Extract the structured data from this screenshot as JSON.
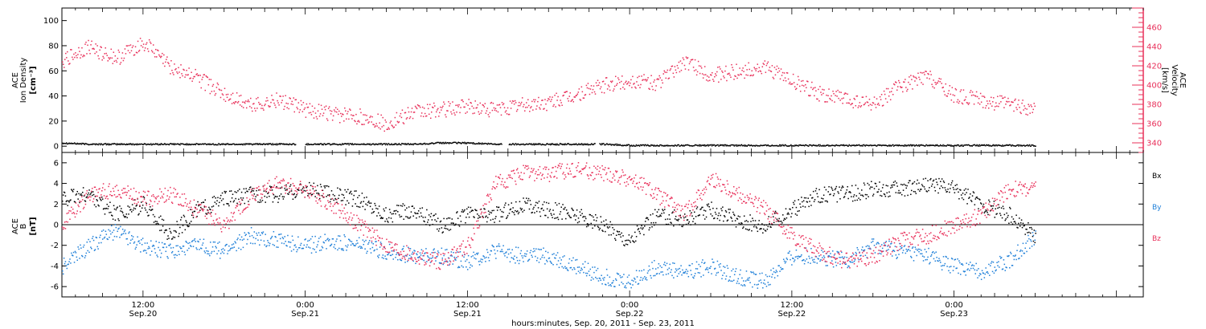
{
  "chart_data": [
    {
      "type": "scatter",
      "panel": "top",
      "ylabel_left": [
        "ACE",
        "Ion Density",
        "[cm⁻³]"
      ],
      "ylabel_right": [
        "ACE",
        "Velocity",
        "[km/s]"
      ],
      "ylim_left": [
        -5,
        110
      ],
      "yticks_left": [
        "0",
        "20",
        "40",
        "60",
        "80",
        "100"
      ],
      "ylim_right": [
        330,
        480
      ],
      "yticks_right": [
        "340",
        "360",
        "380",
        "400",
        "420",
        "440",
        "460"
      ],
      "colors": {
        "density": "#000000",
        "velocity": "#e8305a"
      },
      "x_hours_since_sep20_0000": [
        6,
        8,
        10,
        12,
        14,
        16,
        18,
        20,
        22,
        24,
        26,
        28,
        30,
        32,
        34,
        36,
        38,
        40,
        42,
        44,
        46,
        48,
        50,
        52,
        54,
        56,
        58,
        60,
        62,
        64,
        66,
        68,
        70,
        72,
        74,
        76,
        78
      ],
      "series": [
        {
          "name": "Ion Density",
          "axis": "left",
          "values": [
            3,
            2,
            2,
            2,
            2,
            2,
            2,
            2,
            2,
            2,
            2,
            2,
            2,
            2,
            3,
            3,
            2,
            2,
            2,
            2,
            2,
            1,
            1,
            1,
            1,
            1,
            1,
            1,
            1,
            1,
            1,
            1,
            1,
            1,
            1,
            1,
            1
          ],
          "gaps_hours": [
            [
              23.3,
              24.0
            ],
            [
              38.5,
              39.0
            ],
            [
              45.4,
              45.7
            ]
          ]
        },
        {
          "name": "Velocity",
          "axis": "right",
          "values": [
            425,
            440,
            428,
            445,
            420,
            408,
            390,
            380,
            385,
            375,
            370,
            368,
            360,
            372,
            375,
            378,
            375,
            380,
            382,
            390,
            400,
            405,
            402,
            425,
            410,
            415,
            418,
            405,
            392,
            385,
            380,
            400,
            410,
            390,
            385,
            380,
            375
          ]
        }
      ]
    },
    {
      "type": "scatter",
      "panel": "bottom",
      "ylabel_left": [
        "ACE",
        "B",
        "[nT]"
      ],
      "ylim": [
        -7,
        7
      ],
      "yticks": [
        "-6",
        "-4",
        "-2",
        "0",
        "2",
        "4",
        "6"
      ],
      "legend": [
        "Bx",
        "By",
        "Bz"
      ],
      "legend_position": "right",
      "colors": {
        "Bx": "#000000",
        "By": "#1e7fd8",
        "Bz": "#e8305a"
      },
      "x_hours_since_sep20_0000": [
        6,
        8,
        10,
        12,
        14,
        16,
        18,
        20,
        22,
        24,
        26,
        28,
        30,
        32,
        34,
        36,
        38,
        40,
        42,
        44,
        46,
        48,
        50,
        52,
        54,
        56,
        58,
        60,
        62,
        64,
        66,
        68,
        70,
        72,
        74,
        76,
        78
      ],
      "series": [
        {
          "name": "Bx",
          "values": [
            2.5,
            3,
            1,
            2,
            -1,
            1.5,
            2.5,
            3,
            3,
            3.5,
            3,
            2.5,
            1,
            1.5,
            0,
            1,
            1,
            2,
            1.5,
            1,
            0,
            -1.5,
            1,
            0.5,
            1.5,
            0.5,
            0,
            1.5,
            3,
            3,
            3.5,
            3.5,
            4,
            3.5,
            2,
            1,
            -1
          ]
        },
        {
          "name": "By",
          "values": [
            -4,
            -2,
            -0.5,
            -2,
            -2.5,
            -2,
            -2.5,
            -1,
            -1.5,
            -2,
            -1.5,
            -2,
            -2.5,
            -3,
            -3,
            -3.5,
            -2.5,
            -3,
            -3,
            -4,
            -5,
            -5.5,
            -4,
            -4.5,
            -4,
            -5,
            -5.5,
            -3,
            -3,
            -3.5,
            -2,
            -2.5,
            -3,
            -4,
            -4.5,
            -3.5,
            -1
          ]
        },
        {
          "name": "Bz",
          "values": [
            0,
            3,
            3.5,
            2.5,
            3,
            1.5,
            0,
            3,
            4,
            3.5,
            2,
            0,
            -2,
            -3,
            -3.5,
            -2,
            4,
            5,
            5,
            5.5,
            5,
            4.5,
            3,
            1,
            4.5,
            3,
            1.5,
            -1,
            -2.5,
            -3.5,
            -3,
            -1.5,
            -1,
            0,
            1,
            3.5,
            3.5
          ]
        }
      ]
    }
  ],
  "x_axis": {
    "xlim_hours": [
      6,
      86
    ],
    "ticks": [
      {
        "hours": 12,
        "time": "12:00",
        "date": "Sep.20"
      },
      {
        "hours": 24,
        "time": "0:00",
        "date": "Sep.21"
      },
      {
        "hours": 36,
        "time": "12:00",
        "date": "Sep.21"
      },
      {
        "hours": 48,
        "time": "0:00",
        "date": "Sep.22"
      },
      {
        "hours": 60,
        "time": "12:00",
        "date": "Sep.22"
      },
      {
        "hours": 72,
        "time": "0:00",
        "date": "Sep.23"
      }
    ],
    "title": "hours:minutes, Sep. 20, 2011 - Sep. 23, 2011"
  }
}
